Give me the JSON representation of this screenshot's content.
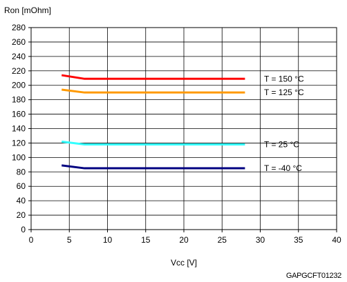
{
  "chart_data": {
    "type": "line",
    "ylabel": "Ron [mOhm]",
    "xlabel": "Vcc [V]",
    "xlim": [
      0,
      40
    ],
    "ylim": [
      0,
      280
    ],
    "xticks": [
      0,
      5,
      10,
      15,
      20,
      25,
      30,
      35,
      40
    ],
    "yticks": [
      0,
      20,
      40,
      60,
      80,
      100,
      120,
      140,
      160,
      180,
      200,
      220,
      240,
      260,
      280
    ],
    "grid": true,
    "x": [
      4,
      7,
      28
    ],
    "series": [
      {
        "name": "T = 150 °C",
        "color": "#ff0000",
        "values": [
          214,
          209,
          209
        ]
      },
      {
        "name": "T = 125 °C",
        "color": "#ff9900",
        "values": [
          194,
          190,
          190
        ]
      },
      {
        "name": "T = 25 °C",
        "color": "#33ffff",
        "values": [
          122,
          118,
          118
        ]
      },
      {
        "name": "T = -40 °C",
        "color": "#000080",
        "values": [
          89,
          85,
          85
        ]
      }
    ],
    "annotation": "GAPGCFT01232"
  }
}
